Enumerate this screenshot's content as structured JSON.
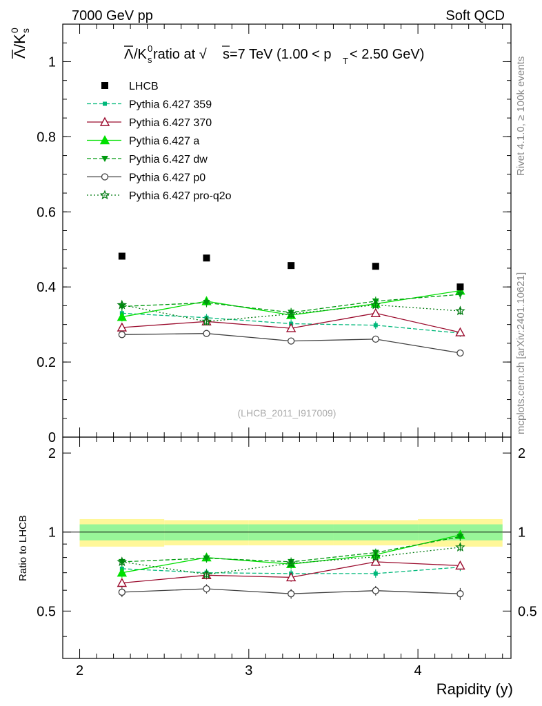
{
  "header": {
    "energy_label": "7000 GeV pp",
    "process_label": "Soft QCD"
  },
  "side_labels": {
    "rivet": "Rivet 4.1.0, ≥ 100k events",
    "mcplots": "mcplots.cern.ch [arXiv:2401.10621]"
  },
  "chart_data": [
    {
      "type": "line",
      "panel": "main",
      "title_parts": {
        "lead": "/K",
        "sup0": "0",
        "subs": "s",
        "mid": " ratio at √",
        "s": "s",
        "tail1": "=7 TeV (1.00 < p",
        "subT": "T",
        "tail2": " < 2.50 GeV)"
      },
      "ylabel_parts": {
        "lambda": "Λ",
        "slash": "/K",
        "sup0": "0",
        "subs": "s"
      },
      "watermark": "(LHCB_2011_I917009)",
      "xlim": [
        1.9,
        4.55
      ],
      "ylim": [
        0,
        1.1
      ],
      "y_major_ticks": [
        0,
        0.2,
        0.4,
        0.6,
        0.8,
        1
      ],
      "y_tick_labels": [
        "0",
        "0.2",
        "0.4",
        "0.6",
        "0.8",
        "1"
      ],
      "x": [
        2.25,
        2.75,
        3.25,
        3.75,
        4.25
      ],
      "data": {
        "name": "LHCB",
        "values": [
          0.482,
          0.477,
          0.457,
          0.455,
          0.4
        ]
      },
      "series": [
        {
          "name": "Pythia 6.427 359",
          "color": "#00b87a",
          "dash": "6,3",
          "marker": "square-small",
          "values": [
            0.33,
            0.318,
            0.302,
            0.298,
            0.277
          ],
          "errors": [
            0.01,
            0.01,
            0.01,
            0.01,
            0.01
          ]
        },
        {
          "name": "Pythia 6.427 370",
          "color": "#9a0a2c",
          "dash": "",
          "marker": "triangle-open",
          "values": [
            0.292,
            0.308,
            0.29,
            0.33,
            0.279
          ],
          "errors": [
            0.01,
            0.01,
            0.01,
            0.01,
            0.01
          ]
        },
        {
          "name": "Pythia 6.427 a",
          "color": "#00e000",
          "dash": "",
          "marker": "triangle",
          "values": [
            0.32,
            0.362,
            0.325,
            0.355,
            0.39
          ],
          "errors": [
            0.012,
            0.012,
            0.012,
            0.012,
            0.012
          ]
        },
        {
          "name": "Pythia 6.427 dw",
          "color": "#009a10",
          "dash": "6,3",
          "marker": "triangle-down",
          "values": [
            0.348,
            0.358,
            0.332,
            0.362,
            0.38
          ],
          "errors": [
            0.012,
            0.012,
            0.012,
            0.012,
            0.012
          ]
        },
        {
          "name": "Pythia 6.427 p0",
          "color": "#404040",
          "dash": "",
          "marker": "circle-open",
          "values": [
            0.273,
            0.276,
            0.256,
            0.261,
            0.224
          ],
          "errors": [
            0.009,
            0.009,
            0.009,
            0.009,
            0.009
          ]
        },
        {
          "name": "Pythia 6.427 pro-q2o",
          "color": "#007a10",
          "dash": "2,3",
          "marker": "star-open",
          "values": [
            0.352,
            0.308,
            0.328,
            0.352,
            0.336
          ],
          "errors": [
            0.01,
            0.01,
            0.01,
            0.01,
            0.01
          ]
        }
      ]
    },
    {
      "type": "line",
      "panel": "ratio",
      "ylabel": "Ratio to LHCB",
      "xlabel": "Rapidity (y)",
      "xlim": [
        1.9,
        4.55
      ],
      "ylim": [
        0.33,
        2.3
      ],
      "x_major_ticks": [
        2,
        3,
        4
      ],
      "x_tick_labels": [
        "2",
        "3",
        "4"
      ],
      "y_major_ticks": [
        0.5,
        1,
        2
      ],
      "y_tick_labels": [
        "0.5",
        "1",
        "2"
      ],
      "x": [
        2.25,
        2.75,
        3.25,
        3.75,
        4.25
      ],
      "bands": {
        "bins": [
          [
            2.0,
            2.5
          ],
          [
            2.5,
            3.0
          ],
          [
            3.0,
            3.5
          ],
          [
            3.5,
            4.0
          ],
          [
            4.0,
            4.5
          ]
        ],
        "stat_low": [
          0.93,
          0.93,
          0.93,
          0.93,
          0.93
        ],
        "stat_high": [
          1.07,
          1.07,
          1.07,
          1.07,
          1.07
        ],
        "total_low": [
          0.88,
          0.89,
          0.89,
          0.89,
          0.88
        ],
        "total_high": [
          1.12,
          1.11,
          1.11,
          1.11,
          1.12
        ]
      },
      "series": [
        {
          "name": "Pythia 6.427 359",
          "values": [
            0.725,
            0.7,
            0.695,
            0.695,
            0.735
          ],
          "errors": [
            0.025,
            0.025,
            0.025,
            0.025,
            0.025
          ]
        },
        {
          "name": "Pythia 6.427 370",
          "values": [
            0.64,
            0.685,
            0.672,
            0.77,
            0.745
          ],
          "errors": [
            0.025,
            0.025,
            0.025,
            0.025,
            0.025
          ]
        },
        {
          "name": "Pythia 6.427 a",
          "values": [
            0.7,
            0.8,
            0.755,
            0.82,
            0.975
          ],
          "errors": [
            0.03,
            0.03,
            0.03,
            0.03,
            0.035
          ]
        },
        {
          "name": "Pythia 6.427 dw",
          "values": [
            0.77,
            0.795,
            0.77,
            0.835,
            0.96
          ],
          "errors": [
            0.03,
            0.03,
            0.03,
            0.03,
            0.035
          ]
        },
        {
          "name": "Pythia 6.427 p0",
          "values": [
            0.59,
            0.608,
            0.582,
            0.598,
            0.582
          ],
          "errors": [
            0.025,
            0.025,
            0.025,
            0.025,
            0.03
          ]
        },
        {
          "name": "Pythia 6.427 pro-q2o",
          "values": [
            0.77,
            0.69,
            0.76,
            0.805,
            0.875
          ],
          "errors": [
            0.025,
            0.025,
            0.025,
            0.025,
            0.03
          ]
        }
      ]
    }
  ]
}
